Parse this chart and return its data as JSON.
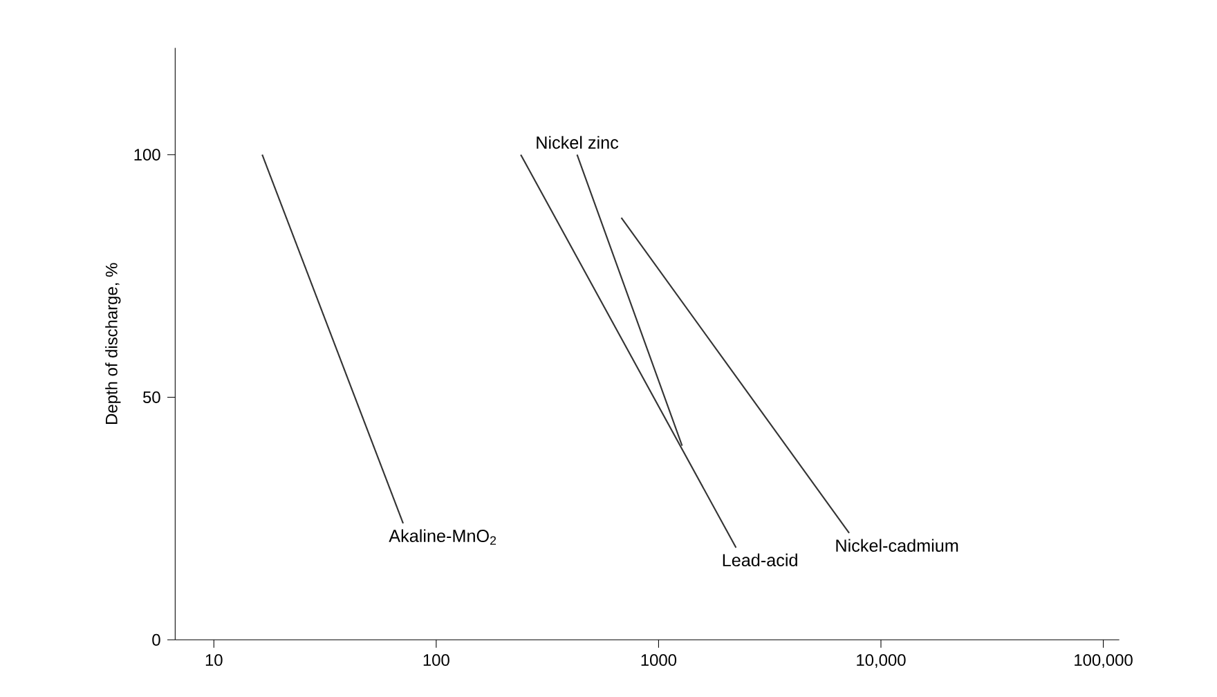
{
  "chart_data": {
    "type": "line",
    "ylabel": "Depth of discharge, %",
    "log": "x",
    "xlim": [
      6.7,
      118000
    ],
    "ylim": [
      0,
      122
    ],
    "xticks": [
      10,
      100,
      1000,
      {
        "value": 10000,
        "label": "10,000"
      },
      {
        "value": 100000,
        "label": "100,000"
      }
    ],
    "yticks": [
      0,
      50,
      100
    ],
    "grid": false,
    "legend": false,
    "series": [
      {
        "name": "Akaline-MnO$_{2}$",
        "color": "#333333",
        "x": [
          16.5,
          71
        ],
        "values": [
          100,
          24
        ]
      },
      {
        "name": "Lead-acid",
        "color": "#333333",
        "x": [
          240,
          2230
        ],
        "values": [
          100,
          19
        ]
      },
      {
        "name": "Nickel zinc",
        "color": "#333333",
        "x": [
          1276,
          430
        ],
        "values": [
          40,
          100
        ]
      },
      {
        "name": "Nickel-cadmium",
        "color": "#333333",
        "x": [
          680,
          7200
        ],
        "values": [
          87,
          22
        ]
      }
    ]
  }
}
